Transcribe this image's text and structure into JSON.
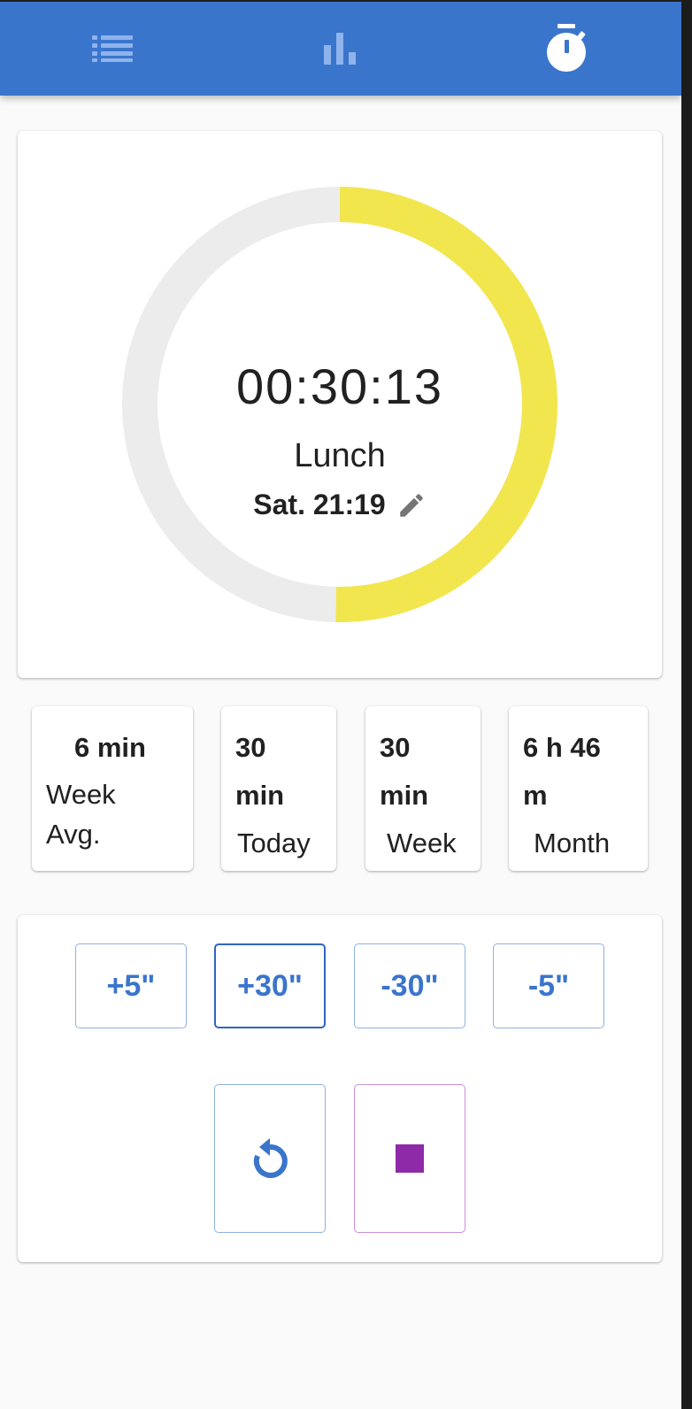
{
  "nav": {
    "items": [
      {
        "name": "list",
        "icon": "list-icon"
      },
      {
        "name": "stats",
        "icon": "bar-chart-icon"
      },
      {
        "name": "timer",
        "icon": "stopwatch-icon",
        "active": true
      }
    ]
  },
  "timer": {
    "elapsed": "00:30:13",
    "activity": "Lunch",
    "start": "Sat. 21:19",
    "edit_icon": "pencil-icon",
    "progress": 0.503,
    "progress_color": "#f2e64e",
    "track_color": "#ececec"
  },
  "stats": [
    {
      "value": "6 min",
      "label_1": "Week",
      "label_2": "Avg."
    },
    {
      "value_1": "30",
      "value_2": "min",
      "label": "Today"
    },
    {
      "value_1": "30",
      "value_2": "min",
      "label": "Week"
    },
    {
      "value_1": "6 h 46",
      "value_2": "m",
      "label": "Month"
    }
  ],
  "controls": {
    "adjust": [
      "+5\"",
      "+30\"",
      "-30\"",
      "-5\""
    ],
    "reset_icon": "restart-icon",
    "stop_icon": "stop-icon",
    "accent": "#3a75cc",
    "stop_color": "#8e2aa8"
  }
}
